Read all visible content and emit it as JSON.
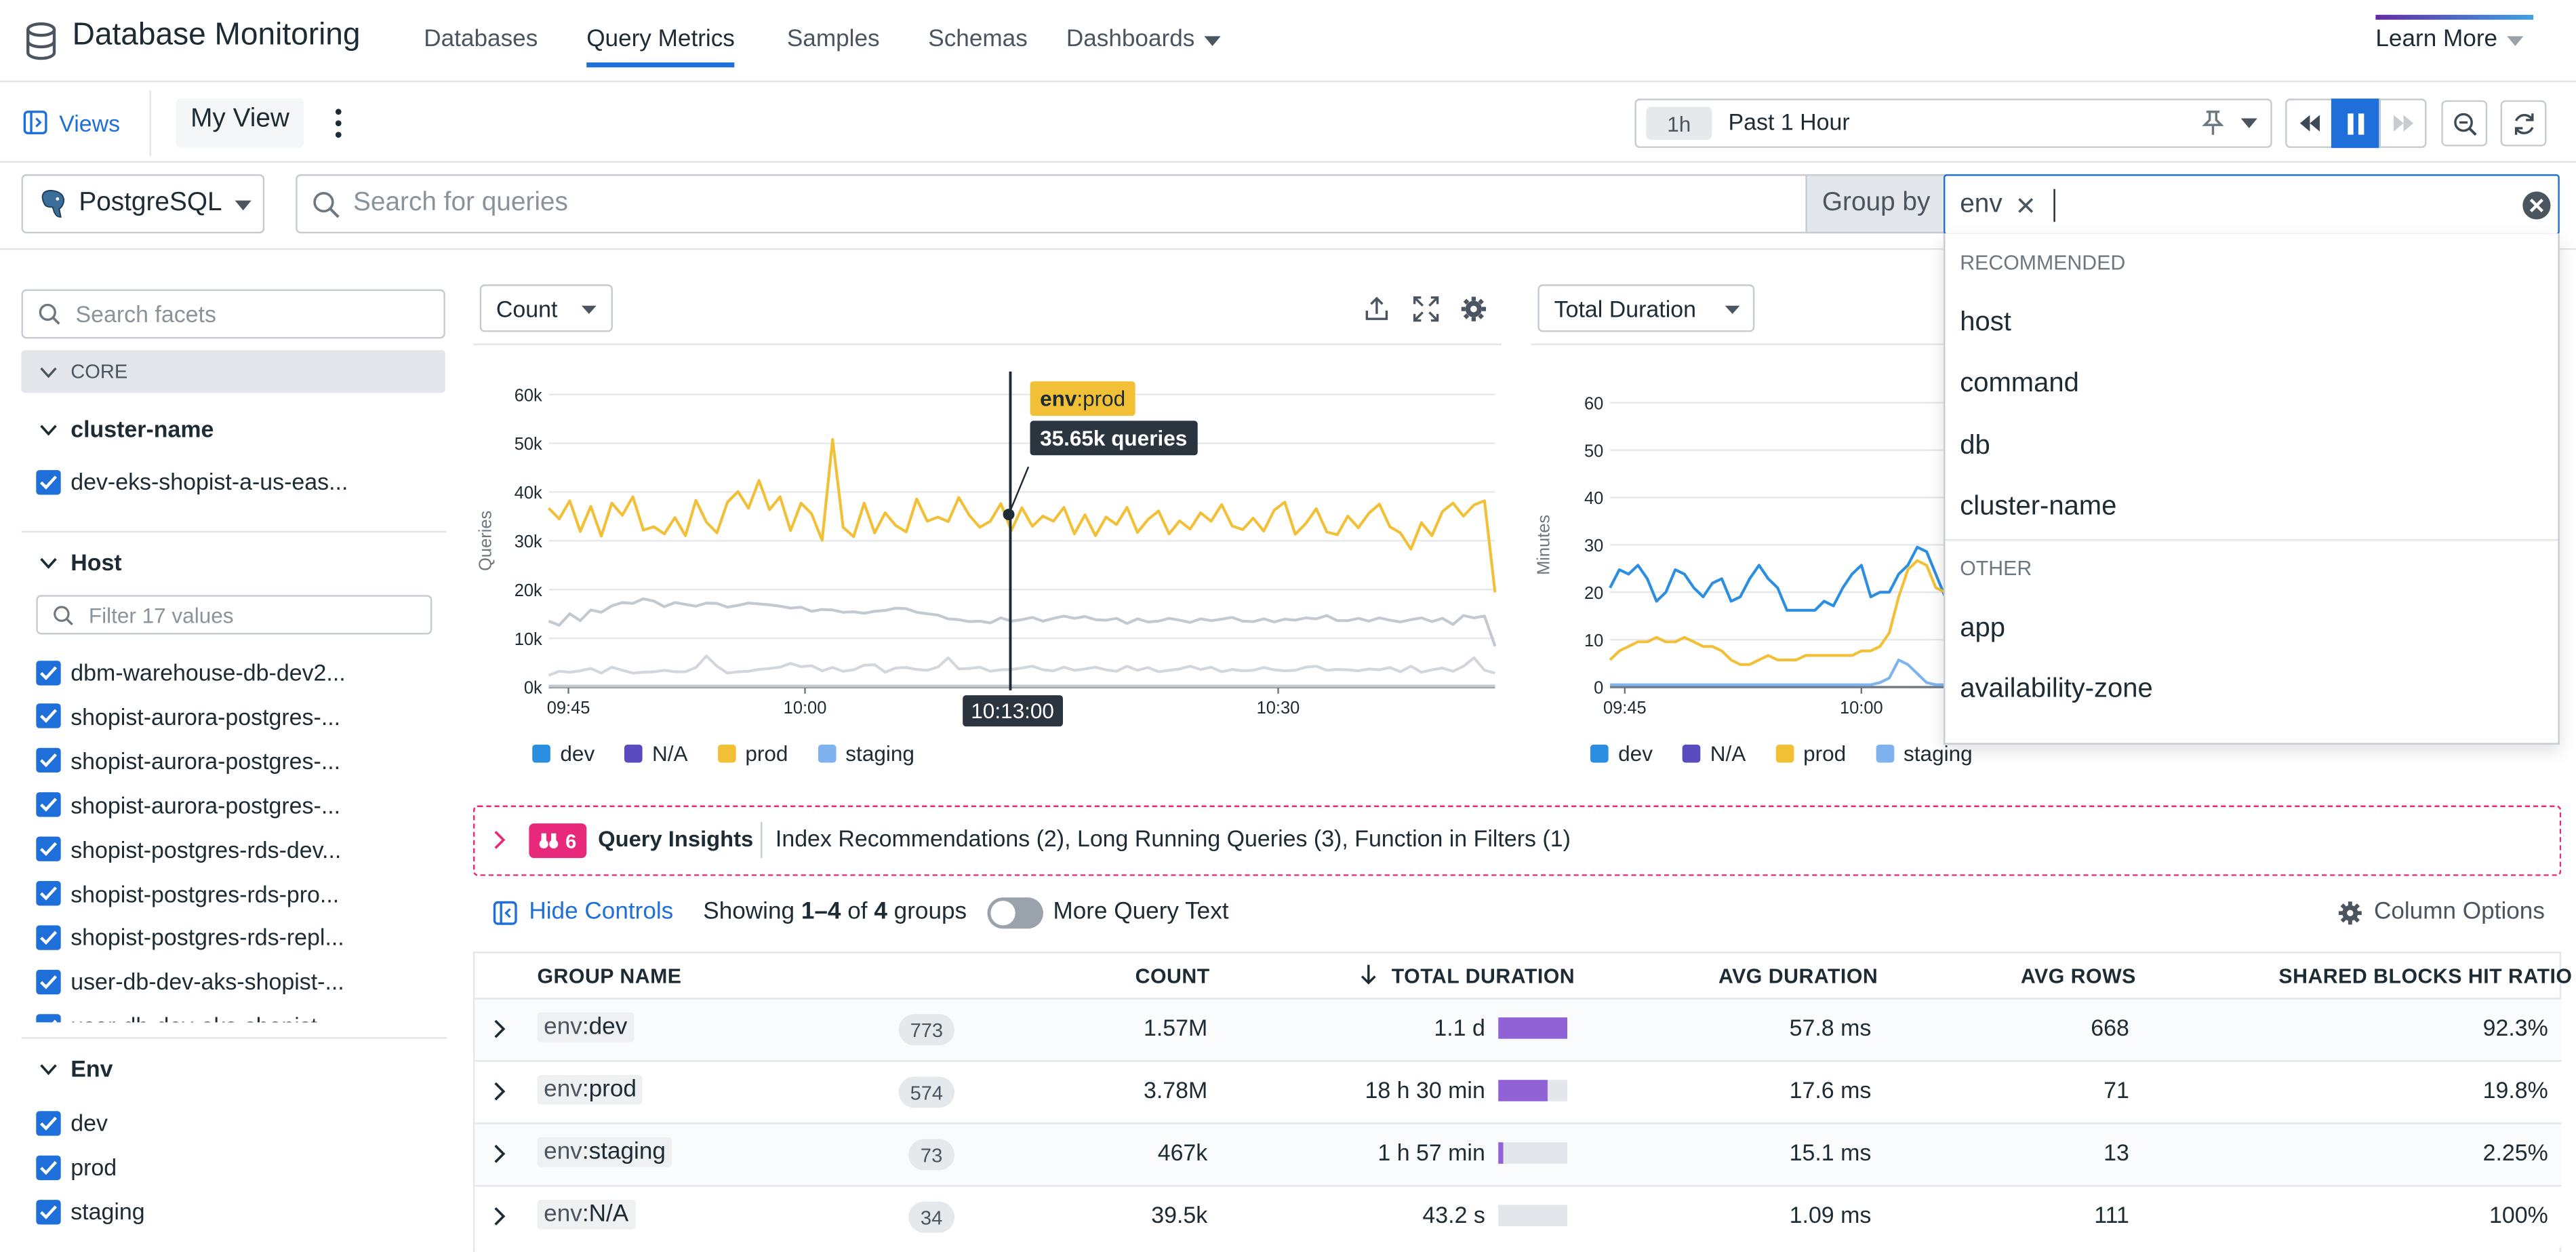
{
  "nav": {
    "app_title": "Database Monitoring",
    "tabs": [
      "Databases",
      "Query Metrics",
      "Samples",
      "Schemas",
      "Dashboards"
    ],
    "learn_more": "Learn More"
  },
  "toolbar": {
    "views": "Views",
    "my_view": "My View",
    "time_pill": "1h",
    "time_label": "Past 1 Hour"
  },
  "filter": {
    "db": "PostgreSQL",
    "search_placeholder": "Search for queries",
    "group_by": "Group by",
    "group_tag": "env"
  },
  "groupby_menu": {
    "recommended_label": "RECOMMENDED",
    "recommended": [
      "host",
      "command",
      "db",
      "cluster-name"
    ],
    "other_label": "OTHER",
    "other": [
      "app",
      "availability-zone"
    ]
  },
  "sidebar": {
    "search_placeholder": "Search facets",
    "core": "CORE",
    "cluster": {
      "title": "cluster-name",
      "items": [
        "dev-eks-shopist-a-us-eas..."
      ]
    },
    "host": {
      "title": "Host",
      "filter_placeholder": "Filter 17 values",
      "items": [
        "dbm-warehouse-db-dev2...",
        "shopist-aurora-postgres-...",
        "shopist-aurora-postgres-...",
        "shopist-aurora-postgres-...",
        "shopist-postgres-rds-dev...",
        "shopist-postgres-rds-pro...",
        "shopist-postgres-rds-repl...",
        "user-db-dev-aks-shopist-...",
        "user-db-dev-aks-shopist-..."
      ]
    },
    "env": {
      "title": "Env",
      "items": [
        "dev",
        "prod",
        "staging"
      ]
    }
  },
  "chart1": {
    "metric": "Count"
  },
  "chart2": {
    "metric": "Total Duration"
  },
  "legend": [
    {
      "name": "dev",
      "color": "#2c8ee0"
    },
    {
      "name": "N/A",
      "color": "#5a4cc0"
    },
    {
      "name": "prod",
      "color": "#f2c037"
    },
    {
      "name": "staging",
      "color": "#7fb3ef"
    }
  ],
  "tooltip": {
    "key": "env",
    "val": ":prod",
    "value": "35.65k queries",
    "time": "10:13:00"
  },
  "chart_data": [
    {
      "type": "line",
      "ylabel": "Queries",
      "yticks": [
        "60k",
        "50k",
        "40k",
        "30k",
        "20k",
        "10k",
        "0k"
      ],
      "ylim": [
        0,
        63000
      ],
      "xticks": [
        "09:45",
        "10:00",
        "10:30"
      ],
      "series": [
        {
          "name": "prod",
          "values": [
            38500,
            36200,
            40100,
            33500,
            38900,
            32500,
            39600,
            37000,
            41000,
            33800,
            34500,
            33000,
            36500,
            32600,
            40200,
            35500,
            33200,
            39800,
            42100,
            38500,
            44500,
            38200,
            41000,
            33700,
            39600,
            37300,
            31600,
            53300,
            34400,
            32400,
            39600,
            33200,
            37500,
            34800,
            33400,
            40500,
            35700,
            36600,
            35650,
            40800,
            37000,
            34400,
            35700,
            39500,
            33700,
            38600,
            34600,
            36800,
            35700,
            38700,
            33000,
            37100,
            32600,
            36600,
            35000,
            38700,
            33300,
            36100,
            37900,
            33000,
            35800,
            34000,
            37500,
            35700,
            39300,
            34700,
            33900,
            36400,
            33600,
            38100,
            39800,
            32900,
            35200,
            38400,
            33400,
            32800,
            36800,
            34300,
            37400,
            39400,
            34500,
            33200,
            29700,
            35400,
            32600,
            37800,
            39600,
            36800,
            39200,
            40100,
            20400
          ]
        },
        {
          "name": "staging",
          "values": [
            14200,
            13300,
            15800,
            14300,
            16600,
            16100,
            17500,
            18200,
            18000,
            19000,
            18500,
            17300,
            18200,
            17800,
            17400,
            18100,
            18000,
            17200,
            17600,
            18100,
            17900,
            17700,
            17400,
            17000,
            17200,
            16300,
            16700,
            16600,
            16100,
            16200,
            15900,
            16300,
            16500,
            17000,
            16900,
            16100,
            15800,
            15500,
            14700,
            14500,
            14100,
            14200,
            13800,
            14900,
            14200,
            14500,
            15000,
            14200,
            14800,
            15300,
            14800,
            15200,
            14500,
            14400,
            14800,
            13700,
            14700,
            14000,
            14200,
            14800,
            14400,
            13900,
            14700,
            14300,
            14600,
            15000,
            14200,
            14100,
            14700,
            14000,
            14600,
            14400,
            14900,
            14700,
            15400,
            14300,
            14300,
            14800,
            14200,
            14900,
            14400,
            14000,
            14500,
            14900,
            14100,
            14800,
            13500,
            15400,
            14900,
            15300,
            8800
          ]
        },
        {
          "name": "dev",
          "values": [
            2500,
            3400,
            3200,
            3500,
            4000,
            3000,
            4300,
            3600,
            3000,
            3200,
            3300,
            3600,
            3300,
            3300,
            4200,
            6700,
            4500,
            3000,
            3300,
            3400,
            3800,
            4000,
            4300,
            5100,
            4400,
            4600,
            3500,
            4200,
            3400,
            3700,
            4700,
            4800,
            3200,
            4100,
            4200,
            3800,
            3600,
            4300,
            6300,
            3900,
            4000,
            4300,
            3400,
            3700,
            3800,
            4100,
            4500,
            3700,
            3500,
            4300,
            3600,
            3900,
            4300,
            3700,
            3400,
            4500,
            3600,
            4200,
            3300,
            3600,
            3900,
            4500,
            3800,
            4300,
            3300,
            3800,
            3500,
            3600,
            4200,
            3700,
            3500,
            3600,
            4300,
            4500,
            3600,
            3800,
            3700,
            3500,
            3900,
            3700,
            4200,
            3300,
            4500,
            3200,
            3700,
            4100,
            3400,
            4500,
            6300,
            3600,
            3000
          ]
        },
        {
          "name": "N/A",
          "values": [
            200,
            200,
            200,
            200,
            200,
            200,
            200,
            200,
            200,
            200,
            200,
            200,
            200,
            200,
            200,
            200,
            200,
            200,
            200,
            200,
            200,
            200,
            200,
            200,
            200,
            200,
            200,
            200,
            200,
            200,
            200,
            200,
            200,
            200,
            200,
            200,
            200,
            200,
            200,
            200,
            200,
            200,
            200,
            200,
            200,
            200,
            200,
            200,
            200,
            200,
            200,
            200,
            200,
            200,
            200,
            200,
            200,
            200,
            200,
            200,
            200,
            200,
            200,
            200,
            200,
            200,
            200,
            200,
            200,
            200,
            200,
            200,
            200,
            200,
            200,
            200,
            200,
            200,
            200,
            200,
            200,
            200,
            200,
            200,
            200,
            200,
            200,
            200,
            200,
            200,
            200
          ]
        }
      ]
    },
    {
      "type": "line",
      "ylabel": "Minutes",
      "yticks": [
        "60",
        "50",
        "40",
        "30",
        "20",
        "10",
        "0"
      ],
      "ylim": [
        0,
        63
      ],
      "xticks": [
        "09:45",
        "10:00"
      ],
      "series": [
        {
          "name": "dev",
          "values": [
            22,
            26,
            25,
            27,
            24,
            19,
            21,
            26,
            25,
            22,
            20,
            23,
            24,
            19,
            20,
            24,
            27,
            24,
            22,
            17,
            17,
            17,
            17,
            19,
            18,
            22,
            25,
            27,
            20,
            21,
            21,
            25,
            27,
            31,
            30,
            25,
            20
          ]
        },
        {
          "name": "prod",
          "values": [
            6,
            8,
            9,
            10,
            10,
            11,
            10,
            10,
            11,
            10,
            9,
            9,
            8,
            6,
            5,
            5,
            6,
            7,
            6,
            6,
            6,
            7,
            7,
            7,
            7,
            7,
            7,
            8,
            8,
            9,
            12,
            20,
            26,
            28,
            27,
            22,
            21
          ]
        },
        {
          "name": "staging",
          "values": [
            0.5,
            0.5,
            0.5,
            0.5,
            0.5,
            0.5,
            0.5,
            0.5,
            0.5,
            0.5,
            0.5,
            0.5,
            0.5,
            0.5,
            0.5,
            0.5,
            0.5,
            0.5,
            0.5,
            0.5,
            0.5,
            0.5,
            0.5,
            0.5,
            0.5,
            0.5,
            0.5,
            0.5,
            0.5,
            1,
            2,
            6,
            5,
            3,
            1,
            0.5,
            0.5
          ]
        }
      ]
    }
  ],
  "insights": {
    "count": "6",
    "title": "Query Insights",
    "text": "Index Recommendations (2), Long Running Queries (3), Function in Filters (1)"
  },
  "table_controls": {
    "hide": "Hide Controls",
    "showing_pre": "Showing ",
    "showing_range": "1–4",
    "showing_mid": " of ",
    "showing_count": "4",
    "showing_post": " groups",
    "more_text": "More Query Text",
    "col_options": "Column Options"
  },
  "table": {
    "headers": [
      "GROUP NAME",
      "COUNT",
      "TOTAL DURATION",
      "AVG DURATION",
      "AVG ROWS",
      "SHARED BLOCKS HIT RATIO"
    ],
    "rows": [
      {
        "key": "env",
        "val": "dev",
        "pill": "773",
        "count": "1.57M",
        "dur": "1.1 d",
        "bar": 1.0,
        "avg": "57.8 ms",
        "rows": "668",
        "ratio": "92.3%"
      },
      {
        "key": "env",
        "val": "prod",
        "pill": "574",
        "count": "3.78M",
        "dur": "18 h 30 min",
        "bar": 0.72,
        "avg": "17.6 ms",
        "rows": "71",
        "ratio": "19.8%"
      },
      {
        "key": "env",
        "val": "staging",
        "pill": "73",
        "count": "467k",
        "dur": "1 h 57 min",
        "bar": 0.07,
        "avg": "15.1 ms",
        "rows": "13",
        "ratio": "2.25%"
      },
      {
        "key": "env",
        "val": "N/A",
        "pill": "34",
        "count": "39.5k",
        "dur": "43.2 s",
        "bar": 0.0,
        "avg": "1.09 ms",
        "rows": "111",
        "ratio": "100%"
      }
    ]
  }
}
